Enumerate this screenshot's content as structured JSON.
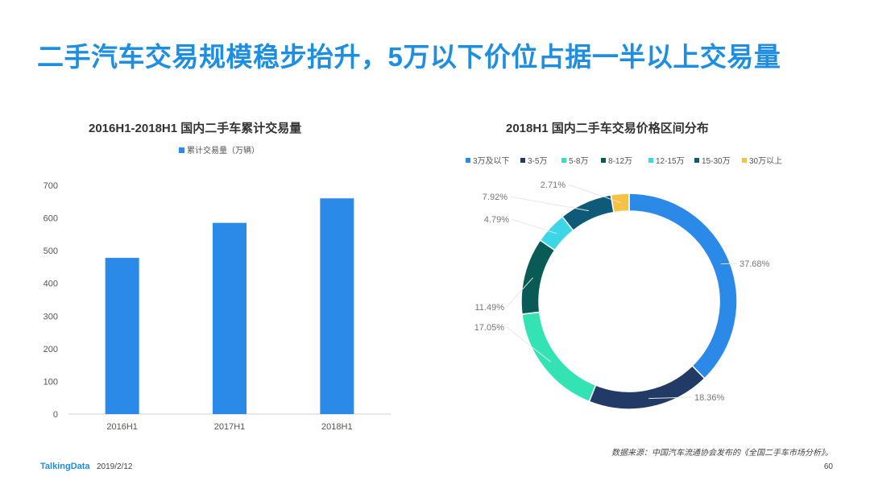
{
  "slide": {
    "title": "二手汽车交易规模稳步抬升，5万以下价位占据一半以上交易量",
    "source_note": "数据来源：中国汽车流通协会发布的《全国二手车市场分析》。",
    "footer_brand": "TalkingData",
    "footer_date": "2019/2/12",
    "page_number": "60"
  },
  "colors": {
    "title": "#1e8ee0",
    "bar": "#2b8ae8",
    "pie": [
      "#2b8ae8",
      "#213a66",
      "#34e3b4",
      "#0a5a55",
      "#3dd6e6",
      "#0e5a78",
      "#f6c244"
    ]
  },
  "chart_data": [
    {
      "type": "bar",
      "title": "2016H1-2018H1   国内二手车累计交易量",
      "categories": [
        "2016H1",
        "2017H1",
        "2018H1"
      ],
      "series": [
        {
          "name": "累计交易量（万辆）",
          "values": [
            478,
            585,
            660
          ]
        }
      ],
      "ylim": [
        0,
        700
      ],
      "yticks": [
        0,
        100,
        200,
        300,
        400,
        500,
        600,
        700
      ],
      "grid": false,
      "legend": "top"
    },
    {
      "type": "pie",
      "style": "donut",
      "title": "2018H1   国内二手车交易价格区间分布",
      "categories": [
        "3万及以下",
        "3-5万",
        "5-8万",
        "8-12万",
        "12-15万",
        "15-30万",
        "30万以上"
      ],
      "values": [
        37.68,
        18.36,
        17.05,
        11.49,
        4.79,
        7.92,
        2.71
      ],
      "labels": [
        "37.68%",
        "18.36%",
        "17.05%",
        "11.49%",
        "4.79%",
        "7.92%",
        "2.71%"
      ],
      "legend": "top"
    }
  ]
}
